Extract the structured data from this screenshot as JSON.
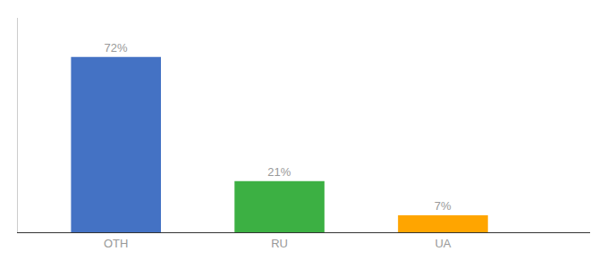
{
  "chart_data": {
    "type": "bar",
    "categories": [
      "OTH",
      "RU",
      "UA"
    ],
    "values": [
      72,
      21,
      7
    ],
    "value_labels": [
      "72%",
      "21%",
      "7%"
    ],
    "colors": [
      "#4472C4",
      "#3CB043",
      "#FFA500"
    ],
    "ylim": [
      0,
      88
    ],
    "data_labels": true,
    "tick_labels": "x",
    "grid": false
  }
}
